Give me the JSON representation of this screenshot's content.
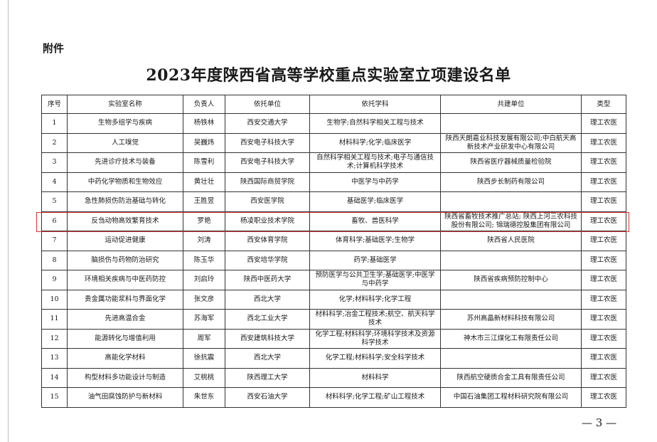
{
  "attachment_label": "附件",
  "title": "2023年度陕西省高等学校重点实验室立项建设名单",
  "columns": [
    "序号",
    "实验室名称",
    "负责人",
    "依托单位",
    "依托学科",
    "共建单位",
    "类型"
  ],
  "rows": [
    [
      "1",
      "生物多组学与疾病",
      "杨铁林",
      "西安交通大学",
      "生物学;自然科学相关工程与技术",
      "",
      "理工农医"
    ],
    [
      "2",
      "人工嗅觉",
      "吴巍炜",
      "西安电子科技大学",
      "材料科学;化学;临床医学",
      "陕西天朗嘉业科技发展有限公司;中白航天高新技术产业研发中心有限公司",
      "理工农医"
    ],
    [
      "3",
      "先进诊疗技术与装备",
      "陈雪利",
      "西安电子科技大学",
      "自然科学相关工程与技术;电子与通信技术;计算机科学技术",
      "陕西省医疗器械质量检验院",
      "理工农医"
    ],
    [
      "4",
      "中药化学物质和生物效应",
      "黄壮壮",
      "陕西国际商贸学院",
      "中医学与中药学",
      "陕西步长制药有限公司",
      "理工农医"
    ],
    [
      "5",
      "急性肺损伤防治基础与转化",
      "王胜昱",
      "西安医学院",
      "基础医学;临床医学",
      "",
      "理工农医"
    ],
    [
      "6",
      "反刍动物高效繁育技术",
      "罗艳",
      "杨凌职业技术学院",
      "畜牧、兽医科学",
      "陕西省畜牧技术推广总站; 陕西上河三农科技股份有限公司; 锦瑞德控股集团有限公司",
      "理工农医"
    ],
    [
      "7",
      "运动促进健康",
      "刘涛",
      "西安体育学院",
      "体育科学;基础医学;生物学",
      "陕西省人民医院",
      "理工农医"
    ],
    [
      "8",
      "脑损伤与药物防治研究",
      "陈玉华",
      "西安培华学院",
      "药学;基础医学",
      "",
      "理工农医"
    ],
    [
      "9",
      "环境相关疾病与中医药防控",
      "刘启玲",
      "陕西中医药大学",
      "预防医学与公共卫生学;基础医学;中医学与中药学",
      "陕西省疾病预防控制中心",
      "理工农医"
    ],
    [
      "10",
      "贵金属功能浆料与界面化学",
      "张文彦",
      "西北大学",
      "化学;材料科学;化学工程",
      "",
      "理工农医"
    ],
    [
      "11",
      "先进高温合金",
      "苏海军",
      "西北工业大学",
      "材料科学;冶金工程技术;航空、航天科学技术",
      "苏州高晶新材料科技有限公司",
      "理工农医"
    ],
    [
      "12",
      "能源转化与增值利用",
      "周军",
      "西安建筑科技大学",
      "化学工程;材料科学;环境科学技术及资源科学技术",
      "神木市三江煤化工有限责任公司",
      "理工农医"
    ],
    [
      "13",
      "高能化学材料",
      "徐抗震",
      "西北大学",
      "化学工程;材料科学;安全科学技术",
      "",
      "理工农医"
    ],
    [
      "14",
      "构型材料多功能设计与制造",
      "艾桃桃",
      "陕西理工大学",
      "材料科学",
      "陕西航空硬质合金工具有限责任公司",
      "理工农医"
    ],
    [
      "15",
      "油气田腐蚀防护与新材料",
      "朱世东",
      "西安石油大学",
      "材料科学;化学工程;矿山工程技术",
      "中国石油集团工程材料研究院有限公司",
      "理工农医"
    ]
  ],
  "highlight_color": "#dd3333",
  "page_number": "— 3 —"
}
